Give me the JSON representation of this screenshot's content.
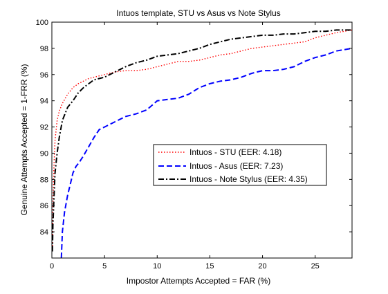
{
  "chart_data": {
    "type": "line",
    "title": "Intuos template, STU vs Asus vs Note Stylus",
    "xlabel": "Impostor Attempts Accepted = FAR (%)",
    "ylabel": "Genuine Attempts Accepted = 1-FRR (%)",
    "xlim": [
      0,
      28.5
    ],
    "ylim": [
      82,
      100
    ],
    "xticks": [
      "0",
      "5",
      "10",
      "15",
      "20",
      "25"
    ],
    "yticks": [
      "84",
      "86",
      "88",
      "90",
      "92",
      "94",
      "96",
      "98",
      "100"
    ],
    "xtick_values": [
      0,
      5,
      10,
      15,
      20,
      25
    ],
    "ytick_values": [
      84,
      86,
      88,
      90,
      92,
      94,
      96,
      98,
      100
    ],
    "grid": false,
    "legend_position": "center-right",
    "series": [
      {
        "name": "Intuos - STU (EER: 4.18)",
        "color": "#ff0000",
        "style": "dotted",
        "x": [
          0.05,
          0.1,
          0.2,
          0.3,
          0.5,
          0.7,
          1.0,
          1.5,
          2.0,
          2.5,
          3.0,
          3.5,
          4.0,
          5.0,
          6.0,
          7.0,
          8.0,
          9.0,
          10.0,
          11.0,
          12.0,
          13.0,
          14.0,
          15.0,
          16.0,
          17.0,
          18.0,
          19.0,
          20.0,
          21.0,
          22.0,
          23.0,
          24.0,
          25.0,
          26.0,
          27.0,
          28.5
        ],
        "y": [
          82.5,
          86.0,
          89.0,
          91.0,
          92.5,
          93.2,
          93.8,
          94.5,
          95.0,
          95.3,
          95.5,
          95.7,
          95.8,
          96.0,
          96.2,
          96.3,
          96.3,
          96.4,
          96.6,
          96.8,
          97.0,
          97.0,
          97.1,
          97.3,
          97.5,
          97.6,
          97.8,
          98.0,
          98.1,
          98.2,
          98.3,
          98.4,
          98.5,
          98.8,
          99.0,
          99.2,
          99.4
        ]
      },
      {
        "name": "Intuos - Asus (EER: 7.23)",
        "color": "#0000ff",
        "style": "dashed",
        "x": [
          0.9,
          1.0,
          1.2,
          1.5,
          1.8,
          2.0,
          2.3,
          2.6,
          3.0,
          3.5,
          4.0,
          4.5,
          5.0,
          5.5,
          6.0,
          6.5,
          7.0,
          7.5,
          8.0,
          9.0,
          10.0,
          11.0,
          12.0,
          13.0,
          14.0,
          15.0,
          16.0,
          17.0,
          18.0,
          19.0,
          20.0,
          21.0,
          22.0,
          23.0,
          24.0,
          25.0,
          26.0,
          27.0,
          28.5
        ],
        "y": [
          82.0,
          84.0,
          85.5,
          86.8,
          87.8,
          88.5,
          89.0,
          89.3,
          89.8,
          90.5,
          91.2,
          91.8,
          92.0,
          92.2,
          92.4,
          92.6,
          92.8,
          92.9,
          93.0,
          93.3,
          94.0,
          94.1,
          94.2,
          94.5,
          95.0,
          95.3,
          95.5,
          95.6,
          95.8,
          96.1,
          96.3,
          96.3,
          96.4,
          96.6,
          97.0,
          97.3,
          97.5,
          97.8,
          98.0
        ]
      },
      {
        "name": "Intuos - Note Stylus (EER: 4.35)",
        "color": "#000000",
        "style": "dashdot",
        "x": [
          0.05,
          0.1,
          0.2,
          0.3,
          0.5,
          0.7,
          1.0,
          1.5,
          2.0,
          2.5,
          3.0,
          3.5,
          4.0,
          5.0,
          6.0,
          7.0,
          8.0,
          9.0,
          10.0,
          11.0,
          12.0,
          13.0,
          14.0,
          15.0,
          16.0,
          17.0,
          18.0,
          19.0,
          20.0,
          21.0,
          22.0,
          23.0,
          24.0,
          25.0,
          26.0,
          27.0,
          28.5
        ],
        "y": [
          82.5,
          84.5,
          86.5,
          88.5,
          90.0,
          91.2,
          92.5,
          93.5,
          94.0,
          94.6,
          95.0,
          95.3,
          95.6,
          95.8,
          96.2,
          96.6,
          96.9,
          97.1,
          97.4,
          97.5,
          97.6,
          97.8,
          98.0,
          98.3,
          98.5,
          98.7,
          98.8,
          98.9,
          99.0,
          99.0,
          99.1,
          99.1,
          99.2,
          99.3,
          99.3,
          99.4,
          99.4
        ]
      }
    ]
  }
}
